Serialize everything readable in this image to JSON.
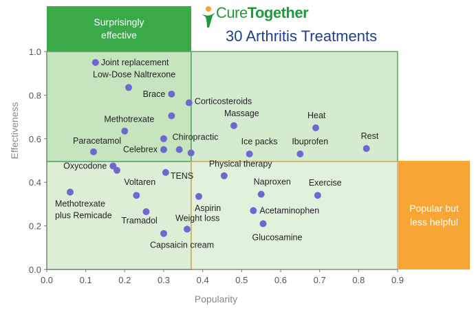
{
  "header": {
    "brand_part1": "Cure",
    "brand_part2": "Together",
    "title": "30 Arthritis Treatments"
  },
  "zones": {
    "top_left_label_lines": [
      "Surprisingly",
      "effective"
    ],
    "right_label_lines": [
      "Popular but",
      "less helpful"
    ]
  },
  "colors": {
    "brand_green": "#1e9a3c",
    "title_blue": "#1f3f88",
    "zone_green": "#3aaa48",
    "zone_orange": "#f7a535",
    "quadrant_fill": "#cfe8c9",
    "quadrant_border_green": "#59a463",
    "quadrant_border_orange": "#dba462",
    "point": "#6e68cf"
  },
  "chart_data": {
    "type": "scatter",
    "title": "30 Arthritis Treatments",
    "xlabel": "Popularity",
    "ylabel": "Effectiveness",
    "xlim": [
      0,
      0.9
    ],
    "ylim": [
      0,
      1.0
    ],
    "xticks": [
      "0.0",
      "0.1",
      "0.2",
      "0.3",
      "0.4",
      "0.5",
      "0.6",
      "0.7",
      "0.8",
      "0.9"
    ],
    "yticks": [
      "0.0",
      "0.2",
      "0.4",
      "0.6",
      "0.8",
      "1.0"
    ],
    "grid": false,
    "quadrant_split": {
      "x": 0.37,
      "y": 0.5
    },
    "points": [
      {
        "label": "Joint replacement",
        "x": 0.125,
        "y": 0.95
      },
      {
        "label": "Low-Dose Naltrexone",
        "x": 0.21,
        "y": 0.835
      },
      {
        "label": "Brace",
        "x": 0.32,
        "y": 0.805
      },
      {
        "label": "Corticosteroids",
        "x": 0.365,
        "y": 0.765
      },
      {
        "label": "",
        "x": 0.32,
        "y": 0.705
      },
      {
        "label": "Massage",
        "x": 0.48,
        "y": 0.66
      },
      {
        "label": "Heat",
        "x": 0.69,
        "y": 0.65
      },
      {
        "label": "Methotrexate",
        "x": 0.2,
        "y": 0.635
      },
      {
        "label": "",
        "x": 0.3,
        "y": 0.6
      },
      {
        "label": "Chiropractic",
        "x": 0.34,
        "y": 0.55
      },
      {
        "label": "Celebrex",
        "x": 0.3,
        "y": 0.55
      },
      {
        "label": "",
        "x": 0.37,
        "y": 0.535
      },
      {
        "label": "Paracetamol",
        "x": 0.12,
        "y": 0.54
      },
      {
        "label": "Ice packs",
        "x": 0.52,
        "y": 0.53
      },
      {
        "label": "Ibuprofen",
        "x": 0.65,
        "y": 0.53
      },
      {
        "label": "Rest",
        "x": 0.82,
        "y": 0.555
      },
      {
        "label": "Oxycodone",
        "x": 0.17,
        "y": 0.475
      },
      {
        "label": "",
        "x": 0.18,
        "y": 0.455
      },
      {
        "label": "TENS",
        "x": 0.305,
        "y": 0.445
      },
      {
        "label": "Physical therapy",
        "x": 0.455,
        "y": 0.43
      },
      {
        "label": "Methotrexate plus Remicade",
        "x": 0.06,
        "y": 0.355
      },
      {
        "label": "Voltaren",
        "x": 0.23,
        "y": 0.34
      },
      {
        "label": "Naproxen",
        "x": 0.55,
        "y": 0.345
      },
      {
        "label": "Exercise",
        "x": 0.695,
        "y": 0.34
      },
      {
        "label": "Aspirin",
        "x": 0.39,
        "y": 0.335
      },
      {
        "label": "Acetaminophen",
        "x": 0.53,
        "y": 0.27
      },
      {
        "label": "Tramadol",
        "x": 0.255,
        "y": 0.265
      },
      {
        "label": "Glucosamine",
        "x": 0.555,
        "y": 0.21
      },
      {
        "label": "Weight loss",
        "x": 0.36,
        "y": 0.185
      },
      {
        "label": "Capsaicin cream",
        "x": 0.3,
        "y": 0.165
      }
    ]
  }
}
